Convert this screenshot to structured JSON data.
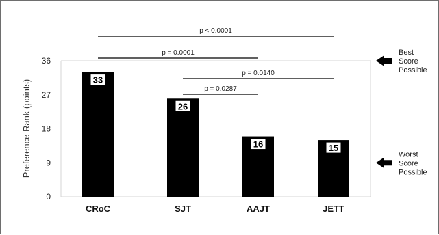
{
  "chart_data": {
    "type": "bar",
    "title": "",
    "xlabel": "",
    "ylabel": "Preference Rank (points)",
    "categories": [
      "CRoC",
      "SJT",
      "AAJT",
      "JETT"
    ],
    "values": [
      33,
      26,
      16,
      15
    ],
    "data_labels": [
      "33",
      "26",
      "16",
      "15"
    ],
    "ylim": [
      0,
      36
    ],
    "yticks": [
      0,
      9,
      18,
      27,
      36
    ],
    "ytick_labels": [
      "0",
      "9",
      "18",
      "27",
      "36"
    ],
    "grid": false,
    "legend": "none",
    "bar_color": "#000000",
    "significance": [
      {
        "from": "CRoC",
        "to": "JETT",
        "label": "p < 0.0001"
      },
      {
        "from": "CRoC",
        "to": "AAJT",
        "label": "p = 0.0001"
      },
      {
        "from": "SJT",
        "to": "JETT",
        "label": "p = 0.0140"
      },
      {
        "from": "SJT",
        "to": "AAJT",
        "label": "p = 0.0287"
      }
    ],
    "annotations": [
      {
        "text_lines": [
          "Best",
          "Score",
          "Possible"
        ],
        "points_to": 36,
        "icon": "left-arrow-icon"
      },
      {
        "text_lines": [
          "Worst",
          "Score",
          "Possible"
        ],
        "points_to": 9,
        "icon": "left-arrow-icon"
      }
    ]
  }
}
